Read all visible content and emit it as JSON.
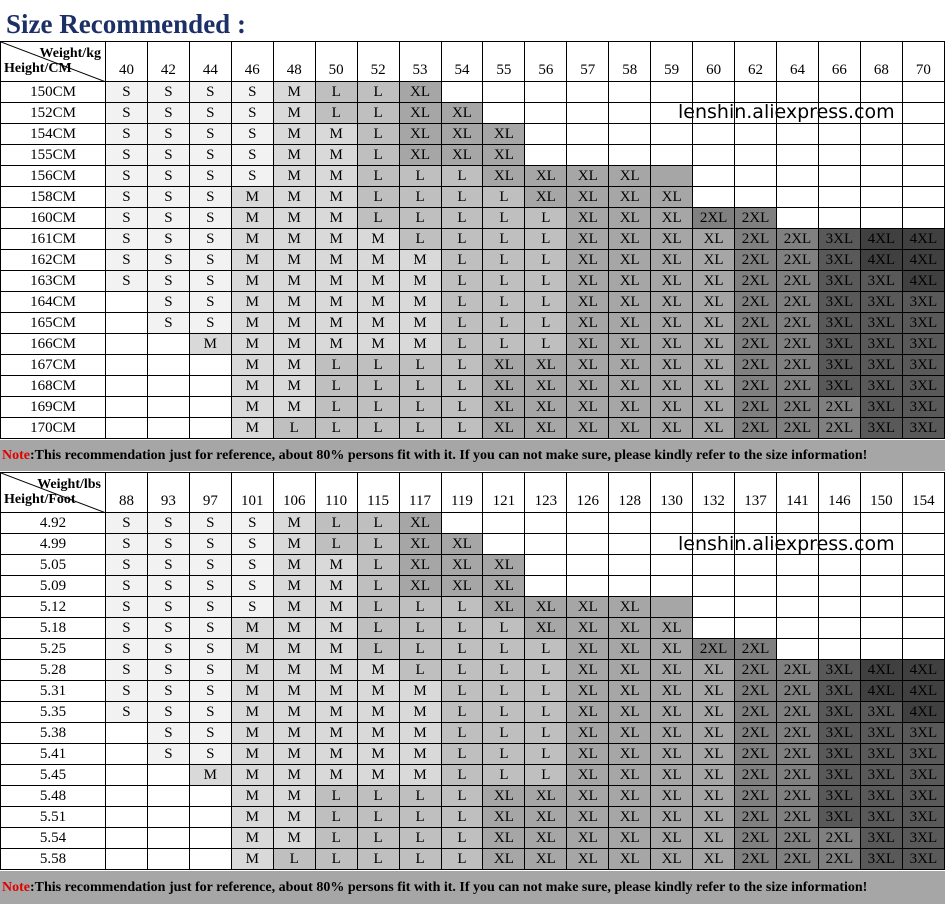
{
  "title": "Size Recommended :",
  "watermark": "lenshin.aliexpress.com",
  "note": {
    "label": "Note",
    "text": ":This recommendation just for reference, about 80% persons fit with it. If you can not make sure, please kindly refer to the size information!"
  },
  "size_colors": {
    "S": "#f2f2f2",
    "M": "#d9d9d9",
    "L": "#bfbfbf",
    "XL": "#a6a6a6",
    "2XL": "#808080",
    "3XL": "#595959",
    "4XL": "#404040",
    "blank": "#ffffff",
    "note_bg": "#a6a6a6",
    "title": "#1c2f66"
  },
  "sizes": [
    [
      "S",
      "S",
      "S",
      "S",
      "M",
      "L",
      "L",
      "XL",
      "",
      "",
      "",
      "",
      "",
      "",
      "",
      "",
      "",
      "",
      "",
      ""
    ],
    [
      "S",
      "S",
      "S",
      "S",
      "M",
      "L",
      "L",
      "XL",
      "XL",
      "",
      "",
      "",
      "",
      "",
      "",
      "",
      "",
      "",
      "",
      ""
    ],
    [
      "S",
      "S",
      "S",
      "S",
      "M",
      "M",
      "L",
      "XL",
      "XL",
      "XL",
      "",
      "",
      "",
      "",
      "",
      "",
      "",
      "",
      "",
      ""
    ],
    [
      "S",
      "S",
      "S",
      "S",
      "M",
      "M",
      "L",
      "XL",
      "XL",
      "XL",
      "",
      "",
      "",
      "",
      "",
      "",
      "",
      "",
      "",
      ""
    ],
    [
      "S",
      "S",
      "S",
      "S",
      "M",
      "M",
      "L",
      "L",
      "L",
      "XL",
      "XL",
      "XL",
      "XL",
      "XL*",
      "",
      "",
      "",
      "",
      "",
      ""
    ],
    [
      "S",
      "S",
      "S",
      "M",
      "M",
      "M",
      "L",
      "L",
      "L",
      "L",
      "XL",
      "XL",
      "XL",
      "XL",
      "",
      "",
      "",
      "",
      "",
      ""
    ],
    [
      "S",
      "S",
      "S",
      "M",
      "M",
      "M",
      "L",
      "L",
      "L",
      "L",
      "L",
      "XL",
      "XL",
      "XL",
      "2XL",
      "2XL",
      "",
      "",
      "",
      ""
    ],
    [
      "S",
      "S",
      "S",
      "M",
      "M",
      "M",
      "M",
      "L",
      "L",
      "L",
      "L",
      "XL",
      "XL",
      "XL",
      "XL",
      "2XL",
      "2XL",
      "3XL",
      "4XL",
      "4XL"
    ],
    [
      "S",
      "S",
      "S",
      "M",
      "M",
      "M",
      "M",
      "M",
      "L",
      "L",
      "L",
      "XL",
      "XL",
      "XL",
      "XL",
      "2XL",
      "2XL",
      "3XL",
      "4XL",
      "4XL"
    ],
    [
      "S",
      "S",
      "S",
      "M",
      "M",
      "M",
      "M",
      "M",
      "L",
      "L",
      "L",
      "XL",
      "XL",
      "XL",
      "XL",
      "2XL",
      "2XL",
      "3XL",
      "3XL",
      "4XL"
    ],
    [
      "",
      "S",
      "S",
      "M",
      "M",
      "M",
      "M",
      "M",
      "L",
      "L",
      "L",
      "XL",
      "XL",
      "XL",
      "XL",
      "2XL",
      "2XL",
      "3XL",
      "3XL",
      "3XL"
    ],
    [
      "",
      "S",
      "S",
      "M",
      "M",
      "M",
      "M",
      "M",
      "L",
      "L",
      "L",
      "XL",
      "XL",
      "XL",
      "XL",
      "2XL",
      "2XL",
      "3XL",
      "3XL",
      "3XL"
    ],
    [
      "",
      "",
      "M",
      "M",
      "M",
      "M",
      "M",
      "M",
      "L",
      "L",
      "L",
      "XL",
      "XL",
      "XL",
      "XL",
      "2XL",
      "2XL",
      "3XL",
      "3XL",
      "3XL"
    ],
    [
      "",
      "",
      "",
      "M",
      "M",
      "L",
      "L",
      "L",
      "L",
      "XL",
      "XL",
      "XL",
      "XL",
      "XL",
      "XL",
      "2XL",
      "2XL",
      "3XL",
      "3XL",
      "3XL"
    ],
    [
      "",
      "",
      "",
      "M",
      "M",
      "L",
      "L",
      "L",
      "L",
      "XL",
      "XL",
      "XL",
      "XL",
      "XL",
      "XL",
      "2XL",
      "2XL",
      "3XL",
      "3XL",
      "3XL"
    ],
    [
      "",
      "",
      "",
      "M",
      "M",
      "L",
      "L",
      "L",
      "L",
      "XL",
      "XL",
      "XL",
      "XL",
      "XL",
      "XL",
      "2XL",
      "2XL",
      "2XL",
      "3XL",
      "3XL"
    ],
    [
      "",
      "",
      "",
      "M",
      "L",
      "L",
      "L",
      "L",
      "L",
      "XL",
      "XL",
      "XL",
      "XL",
      "XL",
      "XL",
      "2XL",
      "2XL",
      "2XL",
      "3XL",
      "3XL"
    ]
  ],
  "tables": [
    {
      "weight_label": "Weight/kg",
      "height_label": "Height/CM",
      "weights": [
        "40",
        "42",
        "44",
        "46",
        "48",
        "50",
        "52",
        "53",
        "54",
        "55",
        "56",
        "57",
        "58",
        "59",
        "60",
        "62",
        "64",
        "66",
        "68",
        "70"
      ],
      "heights": [
        "150CM",
        "152CM",
        "154CM",
        "155CM",
        "156CM",
        "158CM",
        "160CM",
        "161CM",
        "162CM",
        "163CM",
        "164CM",
        "165CM",
        "166CM",
        "167CM",
        "168CM",
        "169CM",
        "170CM"
      ]
    },
    {
      "weight_label": "Weight/lbs",
      "height_label": "Height/Foot",
      "weights": [
        "88",
        "93",
        "97",
        "101",
        "106",
        "110",
        "115",
        "117",
        "119",
        "121",
        "123",
        "126",
        "128",
        "130",
        "132",
        "137",
        "141",
        "146",
        "150",
        "154"
      ],
      "heights": [
        "4.92",
        "4.99",
        "5.05",
        "5.09",
        "5.12",
        "5.18",
        "5.25",
        "5.28",
        "5.31",
        "5.35",
        "5.38",
        "5.41",
        "5.45",
        "5.48",
        "5.51",
        "5.54",
        "5.58"
      ]
    }
  ]
}
